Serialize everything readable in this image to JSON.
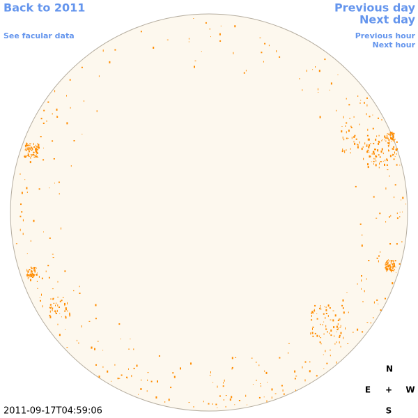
{
  "nav": {
    "back_to_year": "Back to 2011",
    "see_facular": "See facular data",
    "previous_day": "Previous day",
    "next_day": "Next day",
    "previous_hour": "Previous hour",
    "next_hour": "Next hour"
  },
  "timestamp": "2011-09-17T04:59:06",
  "compass": {
    "north": "N",
    "east": "E",
    "center": "+",
    "west": "W",
    "south": "S"
  }
}
